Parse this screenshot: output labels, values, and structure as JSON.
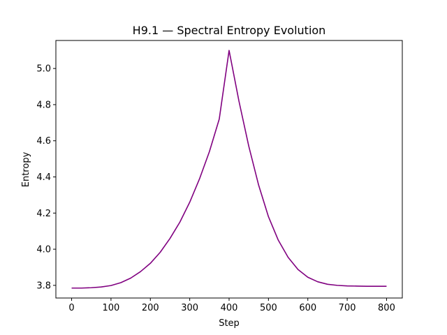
{
  "chart_data": {
    "type": "line",
    "title": "H9.1 — Spectral Entropy Evolution",
    "xlabel": "Step",
    "ylabel": "Entropy",
    "xlim": [
      -40,
      840
    ],
    "ylim": [
      3.73,
      5.155
    ],
    "x_ticks": [
      0,
      100,
      200,
      300,
      400,
      500,
      600,
      700,
      800
    ],
    "y_ticks": [
      3.8,
      4.0,
      4.2,
      4.4,
      4.6,
      4.8,
      5.0
    ],
    "grid": false,
    "legend": "none",
    "line_color": "#800080",
    "series": [
      {
        "x": [
          0,
          25,
          50,
          75,
          100,
          125,
          150,
          175,
          200,
          225,
          250,
          275,
          300,
          325,
          350,
          375,
          400,
          425,
          450,
          475,
          500,
          525,
          550,
          575,
          600,
          625,
          650,
          675,
          700,
          725,
          750,
          775,
          800
        ],
        "values": [
          3.785,
          3.785,
          3.787,
          3.791,
          3.799,
          3.815,
          3.84,
          3.876,
          3.922,
          3.983,
          4.06,
          4.15,
          4.26,
          4.39,
          4.54,
          4.72,
          5.1,
          4.82,
          4.57,
          4.355,
          4.18,
          4.05,
          3.955,
          3.888,
          3.845,
          3.82,
          3.806,
          3.8,
          3.797,
          3.796,
          3.795,
          3.795,
          3.795
        ]
      }
    ]
  }
}
